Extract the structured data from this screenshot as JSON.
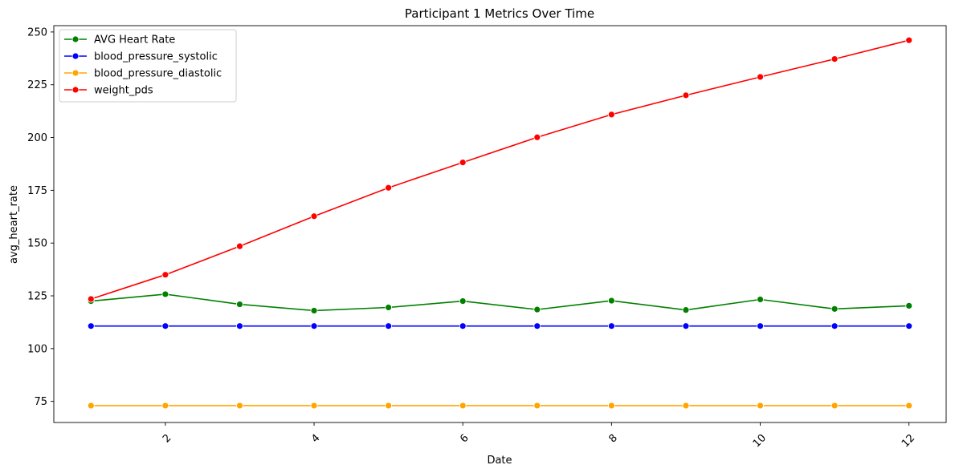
{
  "chart_data": {
    "type": "line",
    "title": "Participant 1 Metrics Over Time",
    "xlabel": "Date",
    "ylabel": "avg_heart_rate",
    "x": [
      1,
      2,
      3,
      4,
      5,
      6,
      7,
      8,
      9,
      10,
      11,
      12
    ],
    "xlim": [
      0.5,
      12.5
    ],
    "ylim": [
      65,
      253
    ],
    "xticks": [
      2,
      4,
      6,
      8,
      10,
      12
    ],
    "yticks": [
      75,
      100,
      125,
      150,
      175,
      200,
      225,
      250
    ],
    "grid": false,
    "legend_position": "top-left",
    "series": [
      {
        "name": "AVG Heart Rate",
        "color": "#008000",
        "values": [
          122.5,
          125.8,
          121.0,
          118.0,
          119.5,
          122.5,
          118.5,
          122.7,
          118.3,
          123.3,
          118.8,
          120.3
        ]
      },
      {
        "name": "blood_pressure_systolic",
        "color": "#0000ff",
        "values": [
          110.7,
          110.7,
          110.7,
          110.7,
          110.7,
          110.7,
          110.7,
          110.7,
          110.7,
          110.7,
          110.7,
          110.7
        ]
      },
      {
        "name": "blood_pressure_diastolic",
        "color": "#ffa500",
        "values": [
          73.0,
          73.0,
          73.0,
          73.0,
          73.0,
          73.0,
          73.0,
          73.0,
          73.0,
          73.0,
          73.0,
          73.0
        ]
      },
      {
        "name": "weight_pds",
        "color": "#ff0000",
        "values": [
          123.5,
          135.0,
          148.5,
          162.7,
          176.2,
          188.2,
          200.1,
          210.9,
          220.0,
          228.7,
          237.2,
          246.1
        ]
      }
    ]
  }
}
